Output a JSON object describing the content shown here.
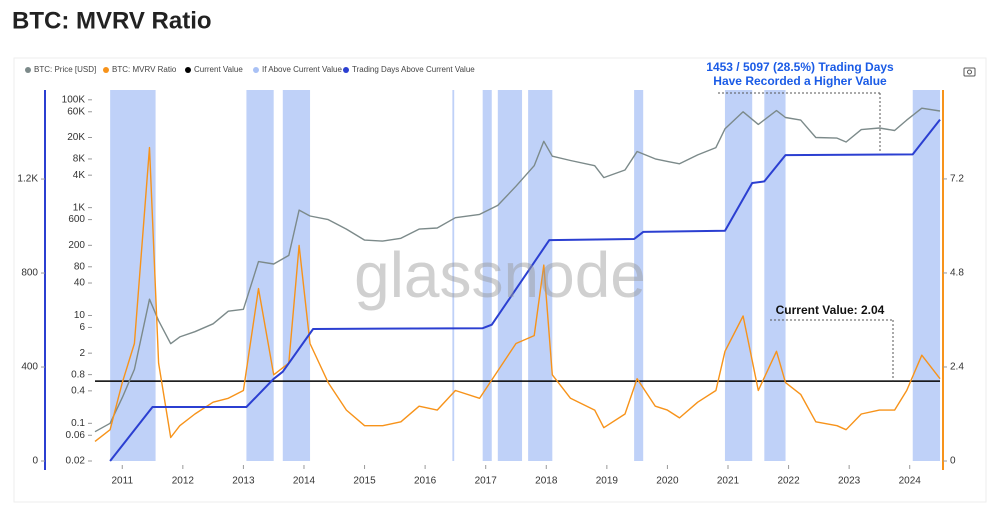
{
  "chart_data": {
    "type": "line",
    "title": "BTC: MVRV Ratio",
    "watermark": "glassnode",
    "annotations": [
      "1453 / 5097 (28.5%) Trading Days",
      "Have Recorded a Higher Value",
      "Current Value: 2.04"
    ],
    "xlim": [
      2010.55,
      2024.5
    ],
    "xticks": [
      2011,
      2012,
      2013,
      2014,
      2015,
      2016,
      2017,
      2018,
      2019,
      2020,
      2021,
      2022,
      2023,
      2024
    ],
    "yscale": "log",
    "ylim": [
      0.02,
      152000
    ],
    "yticks": [
      0.02,
      0.06,
      0.1,
      0.4,
      0.8,
      2,
      6,
      10,
      40,
      80,
      200,
      600,
      {
        "value": 1000,
        "label": "1K"
      },
      {
        "value": 4000,
        "label": "4K"
      },
      {
        "value": 8000,
        "label": "8K"
      },
      {
        "value": 20000,
        "label": "20K"
      },
      {
        "value": 60000,
        "label": "60K"
      },
      {
        "value": 100000,
        "label": "100K"
      }
    ],
    "y2lim": [
      0,
      9.47
    ],
    "y2ticks": [
      0,
      2.4,
      4.8,
      7.2
    ],
    "y3lim": [
      0,
      1579
    ],
    "y3ticks": [
      0,
      400,
      800,
      {
        "value": 1200,
        "label": "1.2K"
      }
    ],
    "series": [
      {
        "name": "BTC: Price [USD]",
        "color": "#7c8a8a",
        "axis": "y",
        "x": [
          2010.55,
          2010.8,
          2011.0,
          2011.2,
          2011.45,
          2011.6,
          2011.8,
          2011.95,
          2012.2,
          2012.5,
          2012.75,
          2013.0,
          2013.25,
          2013.5,
          2013.75,
          2013.92,
          2014.1,
          2014.4,
          2014.7,
          2015.0,
          2015.3,
          2015.6,
          2015.9,
          2016.2,
          2016.5,
          2016.9,
          2017.2,
          2017.5,
          2017.8,
          2017.96,
          2018.1,
          2018.4,
          2018.8,
          2018.95,
          2019.3,
          2019.5,
          2019.8,
          2020.0,
          2020.2,
          2020.5,
          2020.8,
          2020.95,
          2021.25,
          2021.5,
          2021.8,
          2021.95,
          2022.2,
          2022.45,
          2022.8,
          2022.95,
          2023.2,
          2023.5,
          2023.75,
          2023.95,
          2024.2,
          2024.5
        ],
        "values": [
          0.07,
          0.1,
          0.3,
          1,
          20,
          8,
          3,
          4,
          5,
          7,
          12,
          13,
          100,
          90,
          130,
          900,
          700,
          600,
          400,
          250,
          240,
          270,
          400,
          420,
          650,
          750,
          1100,
          2500,
          6000,
          17000,
          9000,
          7500,
          6000,
          3600,
          5000,
          11000,
          8000,
          7200,
          6500,
          9500,
          13000,
          29000,
          60000,
          35000,
          63000,
          47000,
          42000,
          20000,
          19500,
          16500,
          28000,
          30000,
          27000,
          42000,
          70000,
          62000
        ]
      },
      {
        "name": "BTC: MVRV Ratio",
        "color": "#f7931a",
        "axis": "y2",
        "x": [
          2010.55,
          2010.8,
          2011.0,
          2011.2,
          2011.45,
          2011.6,
          2011.8,
          2011.95,
          2012.2,
          2012.5,
          2012.75,
          2013.0,
          2013.25,
          2013.5,
          2013.75,
          2013.92,
          2014.1,
          2014.4,
          2014.7,
          2015.0,
          2015.3,
          2015.6,
          2015.9,
          2016.2,
          2016.5,
          2016.9,
          2017.2,
          2017.5,
          2017.8,
          2017.96,
          2018.1,
          2018.4,
          2018.8,
          2018.95,
          2019.3,
          2019.5,
          2019.8,
          2020.0,
          2020.2,
          2020.5,
          2020.8,
          2020.95,
          2021.25,
          2021.5,
          2021.8,
          2021.95,
          2022.2,
          2022.45,
          2022.8,
          2022.95,
          2023.2,
          2023.5,
          2023.75,
          2023.95,
          2024.2,
          2024.5
        ],
        "values": [
          0.5,
          0.8,
          2,
          3,
          8,
          2.5,
          0.6,
          0.9,
          1.2,
          1.5,
          1.6,
          1.8,
          4.4,
          2.2,
          2.5,
          5.5,
          3,
          2,
          1.3,
          0.9,
          0.9,
          1,
          1.4,
          1.3,
          1.8,
          1.6,
          2.3,
          3,
          3.2,
          5,
          2.2,
          1.6,
          1.3,
          0.85,
          1.2,
          2.1,
          1.4,
          1.3,
          1.1,
          1.5,
          1.8,
          2.8,
          3.7,
          1.8,
          2.8,
          2,
          1.7,
          1,
          0.9,
          0.8,
          1.2,
          1.3,
          1.3,
          1.8,
          2.7,
          2.1
        ]
      },
      {
        "name": "Trading Days Above Current Value",
        "color": "#2b3fd1",
        "axis": "y3",
        "x": [
          2010.8,
          2011.5,
          2013.05,
          2013.5,
          2013.65,
          2014.15,
          2016.95,
          2017.1,
          2018.05,
          2019.45,
          2019.6,
          2020.95,
          2021.4,
          2021.6,
          2021.95,
          2024.05,
          2024.5
        ],
        "values": [
          0,
          230,
          230,
          350,
          380,
          562,
          565,
          580,
          940,
          945,
          975,
          980,
          1183,
          1190,
          1302,
          1305,
          1453
        ]
      }
    ],
    "current_value": {
      "name": "Current Value",
      "color": "#000000",
      "value": 2.04
    },
    "highlight": {
      "name": "If Above Current Value",
      "color": "#a9c1f5",
      "ranges": [
        [
          2010.8,
          2011.55
        ],
        [
          2013.05,
          2013.5
        ],
        [
          2013.65,
          2014.1
        ],
        [
          2016.45,
          2016.48
        ],
        [
          2016.95,
          2017.1
        ],
        [
          2017.2,
          2017.6
        ],
        [
          2017.7,
          2018.1
        ],
        [
          2019.45,
          2019.6
        ],
        [
          2020.95,
          2021.4
        ],
        [
          2021.6,
          2021.95
        ],
        [
          2024.05,
          2024.5
        ]
      ]
    }
  }
}
